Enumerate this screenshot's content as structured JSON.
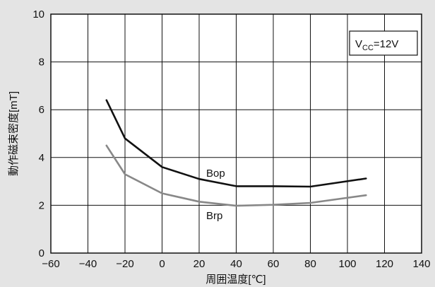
{
  "chart_data": {
    "type": "line",
    "xlabel": "周囲温度[℃]",
    "ylabel": "動作磁束密度[mT]",
    "xlim": [
      -60,
      140
    ],
    "ylim": [
      0,
      10
    ],
    "x_ticks": [
      -60,
      -40,
      -20,
      0,
      20,
      40,
      60,
      80,
      100,
      120,
      140
    ],
    "y_ticks": [
      0,
      2,
      4,
      6,
      8,
      10
    ],
    "x_tick_labels": [
      "−60",
      "−40",
      "−20",
      "0",
      "20",
      "40",
      "60",
      "80",
      "100",
      "120",
      "140"
    ],
    "y_tick_labels": [
      "0",
      "2",
      "4",
      "6",
      "8",
      "10"
    ],
    "grid": true,
    "annotation": {
      "base": "V",
      "subscript": "CC",
      "rest": "=12V"
    },
    "series": [
      {
        "name": "Bop",
        "color": "#111111",
        "x": [
          -30,
          -20,
          0,
          20,
          40,
          60,
          80,
          110
        ],
        "y": [
          6.4,
          4.8,
          3.6,
          3.1,
          2.8,
          2.8,
          2.78,
          3.12
        ]
      },
      {
        "name": "Brp",
        "color": "#888888",
        "x": [
          -30,
          -20,
          0,
          20,
          40,
          60,
          80,
          110
        ],
        "y": [
          4.5,
          3.3,
          2.5,
          2.15,
          1.98,
          2.02,
          2.1,
          2.42
        ]
      }
    ]
  }
}
